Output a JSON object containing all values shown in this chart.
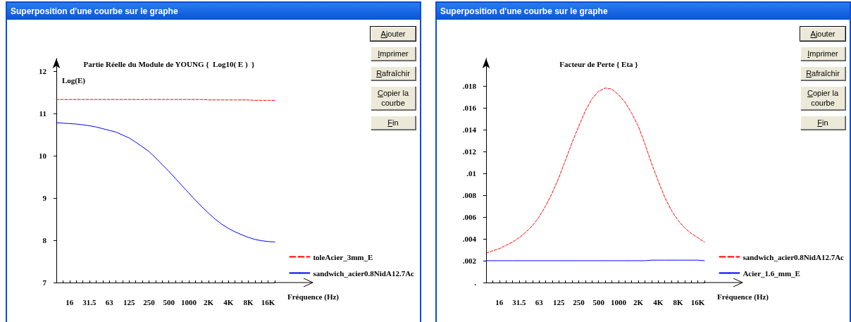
{
  "chart_data": [
    {
      "type": "line",
      "title": "Superposition d'une courbe sur le graphe",
      "subtitle": "Partie Réelle du Module de YOUNG {  Log10( E )  }",
      "ylabel": "Log(E)",
      "xlabel": "Fréquence (Hz)",
      "categories": [
        null,
        null,
        "16",
        null,
        null,
        "31.5",
        null,
        null,
        "63",
        null,
        null,
        "125",
        null,
        null,
        "250",
        null,
        null,
        "500",
        null,
        null,
        "1000",
        null,
        null,
        "2K",
        null,
        null,
        "4K",
        null,
        null,
        "8K",
        null,
        null,
        "16K",
        null
      ],
      "ylim": [
        7,
        12.3
      ],
      "yticks": [
        7,
        8,
        9,
        10,
        11,
        12
      ],
      "grid": false,
      "legend": "bottom right",
      "marker": "none",
      "series": [
        {
          "name": "toleAcier_3mm_E",
          "color": "#ff0000",
          "line_style": "dashed",
          "values": [
            11.33,
            11.33,
            11.33,
            11.33,
            11.33,
            11.33,
            11.33,
            11.33,
            11.33,
            11.33,
            11.33,
            11.33,
            11.33,
            11.33,
            11.33,
            11.33,
            11.33,
            11.33,
            11.33,
            11.33,
            11.33,
            11.33,
            11.33,
            11.32,
            11.32,
            11.32,
            11.32,
            11.32,
            11.32,
            11.32,
            11.31,
            11.31,
            11.31,
            11.31
          ]
        },
        {
          "name": "sandwich_acier0.8NidA12.7Ac",
          "color": "#0000ff",
          "line_style": "solid",
          "values": [
            10.78,
            10.77,
            10.76,
            10.75,
            10.73,
            10.71,
            10.68,
            10.64,
            10.6,
            10.56,
            10.49,
            10.42,
            10.32,
            10.21,
            10.1,
            9.95,
            9.79,
            9.63,
            9.46,
            9.29,
            9.12,
            8.95,
            8.79,
            8.64,
            8.5,
            8.38,
            8.28,
            8.2,
            8.13,
            8.07,
            8.02,
            7.99,
            7.97,
            7.96
          ]
        }
      ],
      "annotations": [
        "Ajouter",
        "Imprimer",
        "Rafraîchir",
        "Copier la courbe",
        "Fin"
      ]
    },
    {
      "type": "line",
      "title": "Superposition d'une courbe sur le graphe",
      "subtitle": "Facteur de Perte { Eta }",
      "xlabel": "Fréquence (Hz)",
      "categories": [
        null,
        null,
        "16",
        null,
        null,
        "31.5",
        null,
        null,
        "63",
        null,
        null,
        "125",
        null,
        null,
        "250",
        null,
        null,
        "500",
        null,
        null,
        "1000",
        null,
        null,
        "2K",
        null,
        null,
        "4K",
        null,
        null,
        "8K",
        null,
        null,
        "16K",
        null
      ],
      "ylim": [
        0,
        0.0205
      ],
      "yticks": [
        {
          "value": 0,
          "label": "."
        },
        {
          "value": 0.002,
          "label": ".002"
        },
        {
          "value": 0.004,
          "label": ".004"
        },
        {
          "value": 0.006,
          "label": ".006"
        },
        {
          "value": 0.008,
          "label": ".008"
        },
        {
          "value": 0.01,
          "label": ".01"
        },
        {
          "value": 0.012,
          "label": ".012"
        },
        {
          "value": 0.014,
          "label": ".014"
        },
        {
          "value": 0.016,
          "label": ".016"
        },
        {
          "value": 0.018,
          "label": ".018"
        }
      ],
      "grid": false,
      "legend": "bottom right",
      "marker": "none",
      "series": [
        {
          "name": "sandwich_acier0.8NidA12.7Ac",
          "color": "#ff0000",
          "line_style": "dashed",
          "values": [
            0.0027,
            0.0029,
            0.0031,
            0.0034,
            0.0037,
            0.0041,
            0.0046,
            0.0052,
            0.006,
            0.007,
            0.0082,
            0.0096,
            0.0112,
            0.0128,
            0.0143,
            0.0157,
            0.0168,
            0.0175,
            0.0178,
            0.0177,
            0.0172,
            0.0165,
            0.0155,
            0.0143,
            0.0127,
            0.0109,
            0.0093,
            0.0078,
            0.0066,
            0.0057,
            0.005,
            0.0045,
            0.0041,
            0.0037
          ]
        },
        {
          "name": "Acier_1.6_mm_E",
          "color": "#0000ff",
          "line_style": "solid",
          "values": [
            0.002,
            0.002,
            0.002,
            0.002,
            0.002,
            0.002,
            0.002,
            0.002,
            0.002,
            0.002,
            0.002,
            0.002,
            0.002,
            0.002,
            0.002,
            0.002,
            0.002,
            0.002,
            0.002,
            0.002,
            0.002,
            0.002,
            0.002,
            0.002,
            0.002,
            0.00205,
            0.00205,
            0.00205,
            0.00205,
            0.00205,
            0.00205,
            0.00205,
            0.00205,
            0.002
          ]
        }
      ],
      "annotations": [
        "Ajouter",
        "Imprimer",
        "Rafraîchir",
        "Copier la courbe",
        "Fin"
      ]
    }
  ]
}
